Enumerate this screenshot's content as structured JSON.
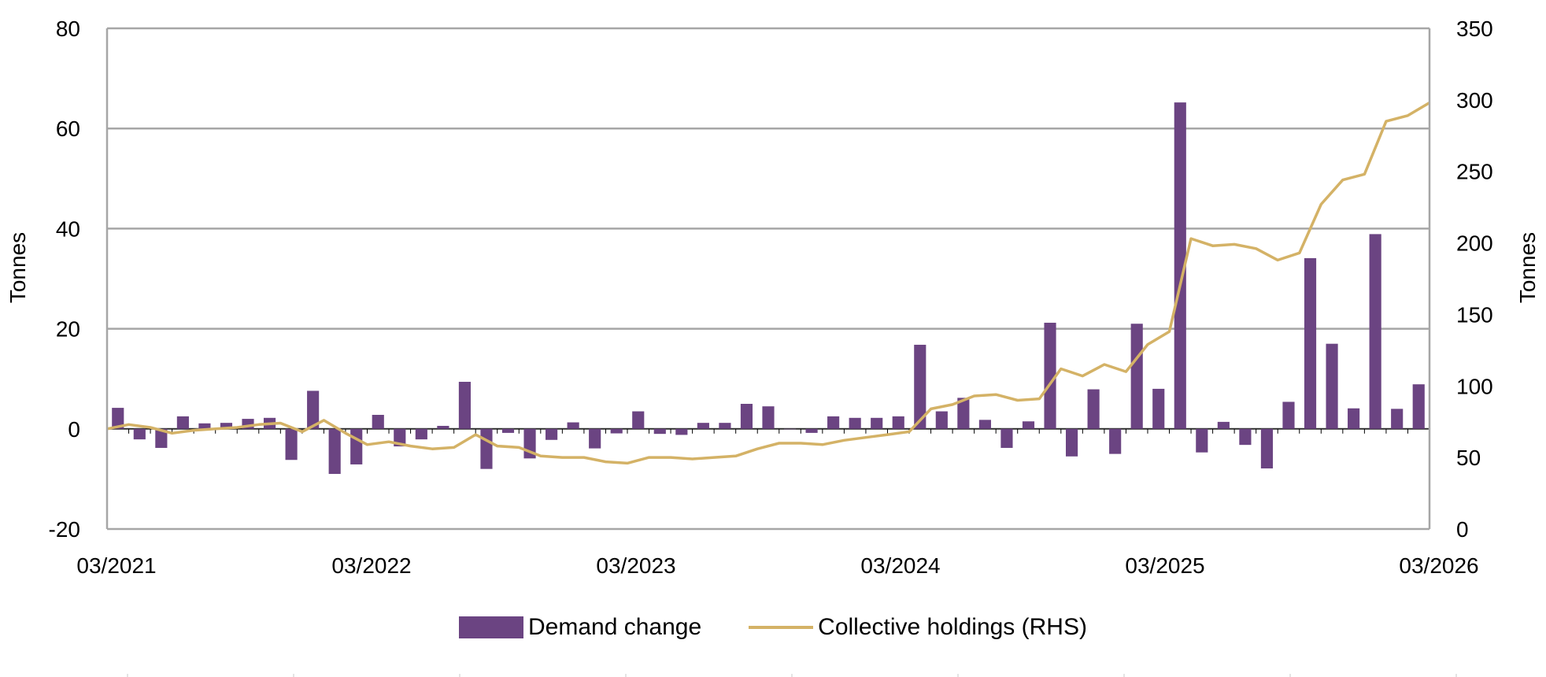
{
  "chart_data": {
    "type": "bar",
    "left_axis": {
      "title": "Tonnes",
      "range": [
        -20,
        80
      ],
      "ticks": [
        "80",
        "60",
        "40",
        "20",
        "0",
        "-20"
      ],
      "tick_values": [
        80,
        60,
        40,
        20,
        0,
        -20
      ]
    },
    "right_axis": {
      "title": "Tonnes",
      "range": [
        0,
        350
      ],
      "ticks": [
        "350",
        "300",
        "250",
        "200",
        "150",
        "100",
        "50",
        "0"
      ],
      "tick_values": [
        350,
        300,
        250,
        200,
        150,
        100,
        50,
        0
      ]
    },
    "x_ticks": [
      "03/2021",
      "03/2022",
      "03/2023",
      "03/2024",
      "03/2025",
      "03/2026"
    ],
    "grid": true,
    "legend_position": "bottom",
    "series": [
      {
        "name": "Demand change",
        "type": "bar",
        "axis": "left",
        "color": "#6b4482",
        "values": [
          4.2,
          -2.1,
          -3.8,
          2.5,
          1.1,
          1.2,
          2.0,
          2.2,
          -6.2,
          7.6,
          -9.0,
          -7.1,
          2.8,
          -3.5,
          -2.1,
          0.6,
          9.4,
          -8.0,
          -0.8,
          -5.9,
          -2.2,
          1.3,
          -3.9,
          -0.9,
          3.5,
          -1.0,
          -1.2,
          1.2,
          1.2,
          5.0,
          4.5,
          0.0,
          -0.8,
          2.5,
          2.2,
          2.2,
          2.5,
          16.8,
          3.5,
          6.2,
          1.8,
          -3.8,
          1.5,
          21.2,
          -5.5,
          7.9,
          -5.0,
          21.0,
          8.0,
          65.2,
          -4.7,
          1.4,
          -3.2,
          -7.9,
          5.4,
          34.1,
          17.0,
          4.1,
          38.9,
          4.0,
          8.9
        ]
      },
      {
        "name": "Collective holdings (RHS)",
        "type": "line",
        "axis": "right",
        "color": "#d4b266",
        "values": [
          70,
          73,
          71,
          67,
          69,
          70,
          71,
          73,
          74,
          68,
          76,
          67,
          59,
          61,
          58,
          56,
          57,
          66,
          58,
          57,
          51,
          50,
          50,
          47,
          46,
          50,
          50,
          49,
          50,
          51,
          56,
          60,
          60,
          59,
          62,
          64,
          66,
          68,
          84,
          87,
          93,
          94,
          90,
          91,
          112,
          107,
          115,
          110,
          129,
          138,
          203,
          198,
          199,
          196,
          188,
          193,
          227,
          244,
          248,
          285,
          289,
          298
        ]
      }
    ]
  }
}
